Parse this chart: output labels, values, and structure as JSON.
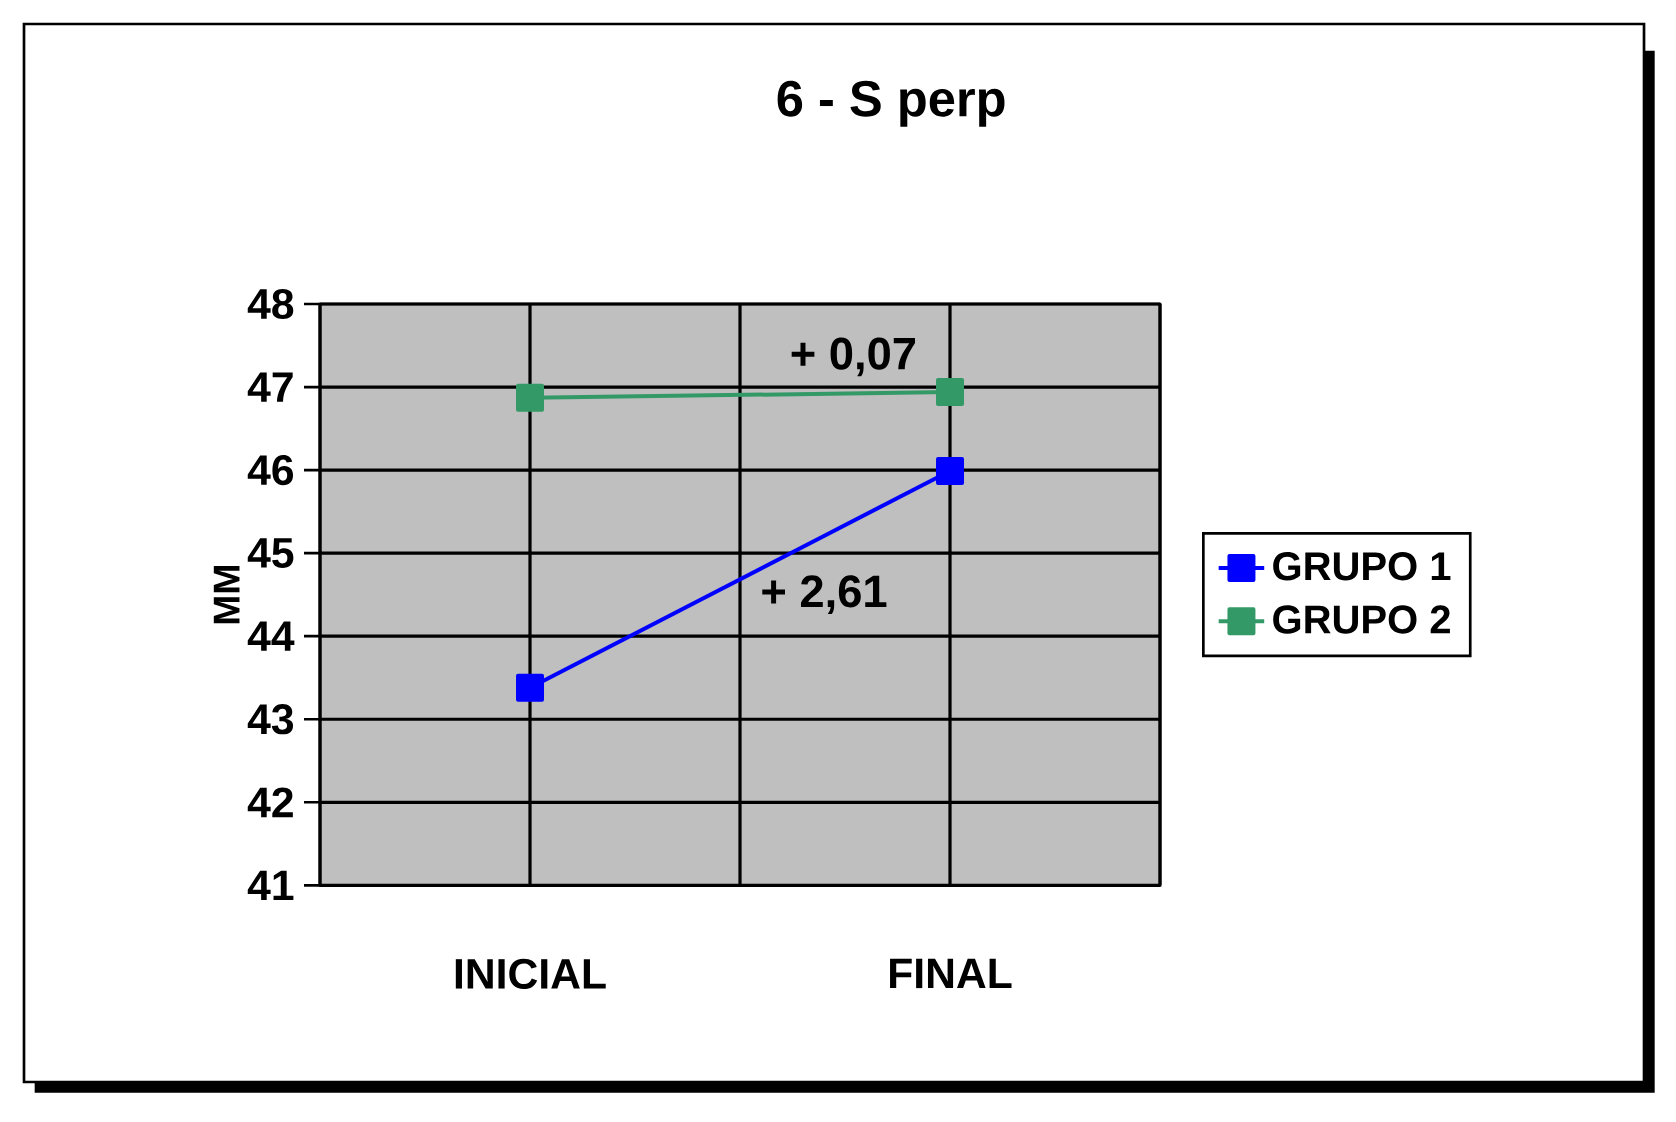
{
  "chart_data": {
    "type": "line",
    "title": "6 - S perp",
    "ylabel": "MM",
    "categories": [
      "INICIAL",
      "FINAL"
    ],
    "series": [
      {
        "name": "GRUPO 1",
        "color": "#0000ff",
        "values": [
          43.38,
          45.99
        ]
      },
      {
        "name": "GRUPO 2",
        "color": "#339966",
        "values": [
          46.87,
          46.94
        ]
      }
    ],
    "ylim": [
      41,
      48
    ],
    "yticks": [
      41,
      42,
      43,
      44,
      45,
      46,
      47,
      48
    ],
    "grid": true,
    "legend": "right",
    "marker": "square",
    "line_style": "solid",
    "annotations": [
      "+ 0,07",
      "+ 2,61"
    ]
  }
}
